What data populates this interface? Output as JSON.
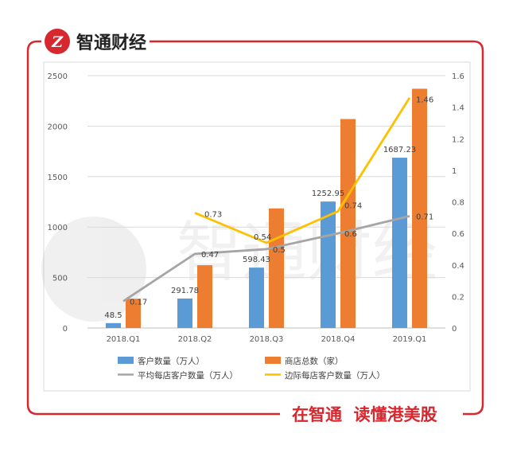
{
  "brand": {
    "name": "智通财经",
    "logo_letter": "Z",
    "watermark": "智通财经"
  },
  "footer": {
    "slogan": "在智通  读懂港美股"
  },
  "colors": {
    "frame": "#d6282e",
    "customers": "#5b9bd5",
    "stores": "#ed7d31",
    "avg": "#a5a5a5",
    "marginal": "#ffc000"
  },
  "chart_data": {
    "type": "bar",
    "categories": [
      "2018.Q1",
      "2018.Q2",
      "2018.Q3",
      "2018.Q4",
      "2019.Q1"
    ],
    "y_left": {
      "ticks": [
        "0",
        "500",
        "1000",
        "1500",
        "2000",
        "2500"
      ],
      "ylim": [
        0,
        2500
      ]
    },
    "y_right": {
      "ticks": [
        "0",
        "0.2",
        "0.4",
        "0.6",
        "0.8",
        "1",
        "1.2",
        "1.4",
        "1.6"
      ],
      "ylim": [
        0,
        1.6
      ]
    },
    "series": [
      {
        "name": "客户数量（万人）",
        "kind": "bar",
        "axis": "left",
        "values": [
          48.5,
          291.78,
          598.43,
          1252.95,
          1687.23
        ],
        "labels": [
          "48.5",
          "291.78",
          "598.43",
          "1252.95",
          "1687.23"
        ]
      },
      {
        "name": "商店总数（家）",
        "kind": "bar",
        "axis": "left",
        "values": [
          290,
          622,
          1185,
          2070,
          2370
        ],
        "labels": []
      },
      {
        "name": "平均每店客户数量（万人）",
        "kind": "line",
        "axis": "right",
        "values": [
          0.17,
          0.47,
          0.5,
          0.6,
          0.71
        ],
        "labels": [
          "0.17",
          "0.47",
          "0.5",
          "0.6",
          "0.71"
        ]
      },
      {
        "name": "边际每店客户数量（万人）",
        "kind": "line",
        "axis": "right",
        "values": [
          null,
          0.73,
          0.54,
          0.74,
          1.46
        ],
        "labels": [
          "",
          "0.73",
          "0.54",
          "0.74",
          "1.46"
        ]
      }
    ]
  }
}
